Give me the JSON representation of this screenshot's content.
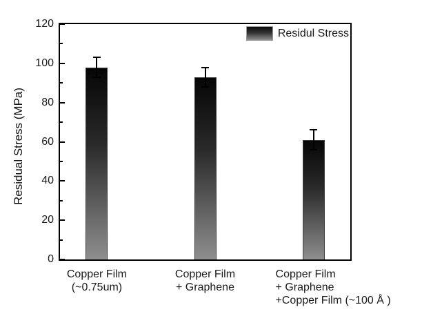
{
  "chart_data": {
    "type": "bar",
    "title": "",
    "ylabel": "Residual Stress (MPa)",
    "xlabel": "",
    "ylim": [
      0,
      120
    ],
    "yticks": [
      0,
      20,
      40,
      60,
      80,
      100,
      120
    ],
    "minor_yticks": [
      10,
      30,
      50,
      70,
      90,
      110
    ],
    "grid": false,
    "legend": {
      "label": "Residul Stress",
      "position": "top-right-inside"
    },
    "categories": [
      [
        "Copper Film",
        "(~0.75um)"
      ],
      [
        "Copper Film",
        "+ Graphene"
      ],
      [
        "Copper Film",
        "+ Graphene",
        "+Copper Film (~100 Å )"
      ]
    ],
    "series": [
      {
        "name": "Residul Stress",
        "values": [
          98,
          93,
          61
        ],
        "errors": [
          5,
          5,
          5
        ]
      }
    ],
    "colors": {
      "bar_gradient_top": "#060606",
      "bar_gradient_bottom": "#8e8e8e",
      "bar_border": "#3c3c3c",
      "axis": "#000000",
      "text": "#1a1a1a",
      "background": "#ffffff"
    }
  }
}
